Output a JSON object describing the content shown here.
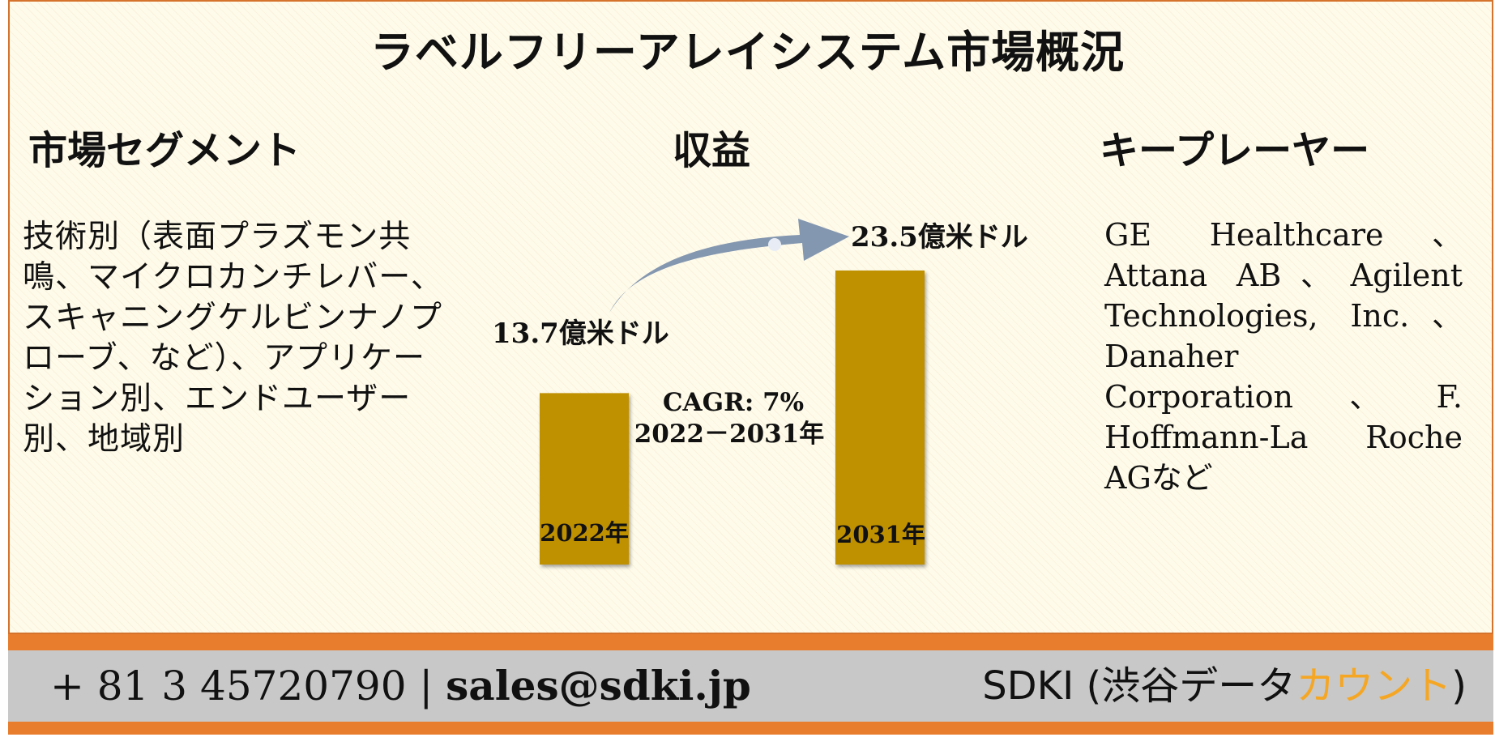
{
  "title": "ラベルフリーアレイシステム市場概況",
  "sections": {
    "segments": {
      "heading": "市場セグメント",
      "text": "技術別（表面プラズモン共鳴、マイクロカンチレバー、スキャニングケルビンナノプローブ、など）、アプリケーション別、エンドユーザー別、地域別"
    },
    "revenue": {
      "heading": "収益"
    },
    "key_players": {
      "heading": "キープレーヤー",
      "text": "GE Healthcare、Attana AB、Agilent Technologies, Inc.、Danaher Corporation、F. Hoffmann-La Roche AGなど"
    }
  },
  "chart_data": {
    "type": "bar",
    "categories": [
      "2022年",
      "2031年"
    ],
    "values": [
      13.7,
      23.5
    ],
    "value_labels": [
      "13.7億米ドル",
      "23.5億米ドル"
    ],
    "unit": "億米ドル",
    "cagr_label": "CAGR: 7%",
    "cagr_period": "2022－2031年",
    "bar_color": "#bf9000",
    "arrow_color": "#8497b0"
  },
  "footer": {
    "contact": "+ 81 3 45720790 | ",
    "email": "sales@sdki.jp",
    "brand_prefix": "SDKI (渋谷データ",
    "brand_accent": "カウント",
    "brand_suffix": ")",
    "accent_color": "#f5a623",
    "line_color": "#e87d2e",
    "band_color": "#c8c8c8"
  }
}
